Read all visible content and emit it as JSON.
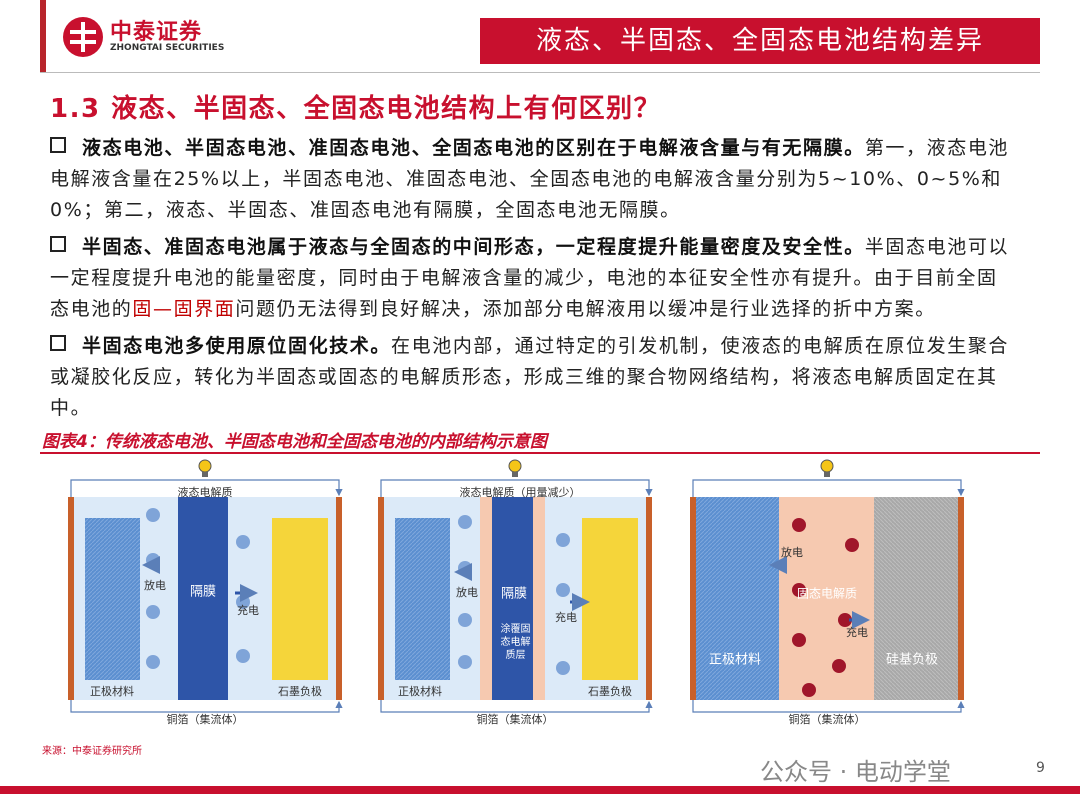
{
  "header": {
    "logo_name": "中泰证券",
    "logo_subtitle": "ZHONGTAI SECURITIES",
    "banner": "液态、半固态、全固态电池结构差异"
  },
  "section_title": "1.3 液态、半固态、全固态电池结构上有何区别？",
  "paragraphs": [
    {
      "lead": "液态电池、半固态电池、准固态电池、全固态电池的区别在于电解液含量与有无隔膜。",
      "body": "第一，液态电池电解液含量在25%以上，半固态电池、准固态电池、全固态电池的电解液含量分别为5~10%、0~5%和0%；第二，液态、半固态、准固态电池有隔膜，全固态电池无隔膜。"
    },
    {
      "lead": "半固态、准固态电池属于液态与全固态的中间形态，一定程度提升能量密度及安全性。",
      "body": "半固态电池可以一定程度提升电池的能量密度，同时由于电解液含量的减少，电池的本征安全性亦有提升。由于目前全固态电池的",
      "highlight": "固—固界面",
      "body_end": "问题仍无法得到良好解决，添加部分电解液用以缓冲是行业选择的折中方案。"
    },
    {
      "lead": "半固态电池多使用原位固化技术。",
      "body": "在电池内部，通过特定的引发机制，使液态的电解质在原位发生聚合或凝胶化反应，转化为半固态或固态的电解质形态，形成三维的聚合物网络结构，将液态电解质固定在其中。"
    }
  ],
  "figure": {
    "caption": "图表4：传统液态电池、半固态电池和全固态电池的内部结构示意图",
    "diagrams": [
      {
        "top_label": "液态电解质",
        "discharge": "放电",
        "separator": "隔膜",
        "charge": "充电",
        "cathode": "正极材料",
        "anode": "石墨负极",
        "current_collector": "铜箔（集流体）"
      },
      {
        "top_label": "液态电解质（用量减少）",
        "discharge": "放电",
        "separator": "隔膜",
        "coating": "涂覆固态电解质层",
        "charge": "充电",
        "cathode": "正极材料",
        "anode": "石墨负极",
        "current_collector": "铜箔（集流体）"
      },
      {
        "discharge": "放电",
        "electrolyte": "固态电解质",
        "charge": "充电",
        "cathode": "正极材料",
        "anode": "硅基负极",
        "current_collector": "铜箔（集流体）"
      }
    ]
  },
  "source": "来源：中泰证券研究所",
  "watermark": "公众号 · 电动学堂",
  "page_number": "9"
}
